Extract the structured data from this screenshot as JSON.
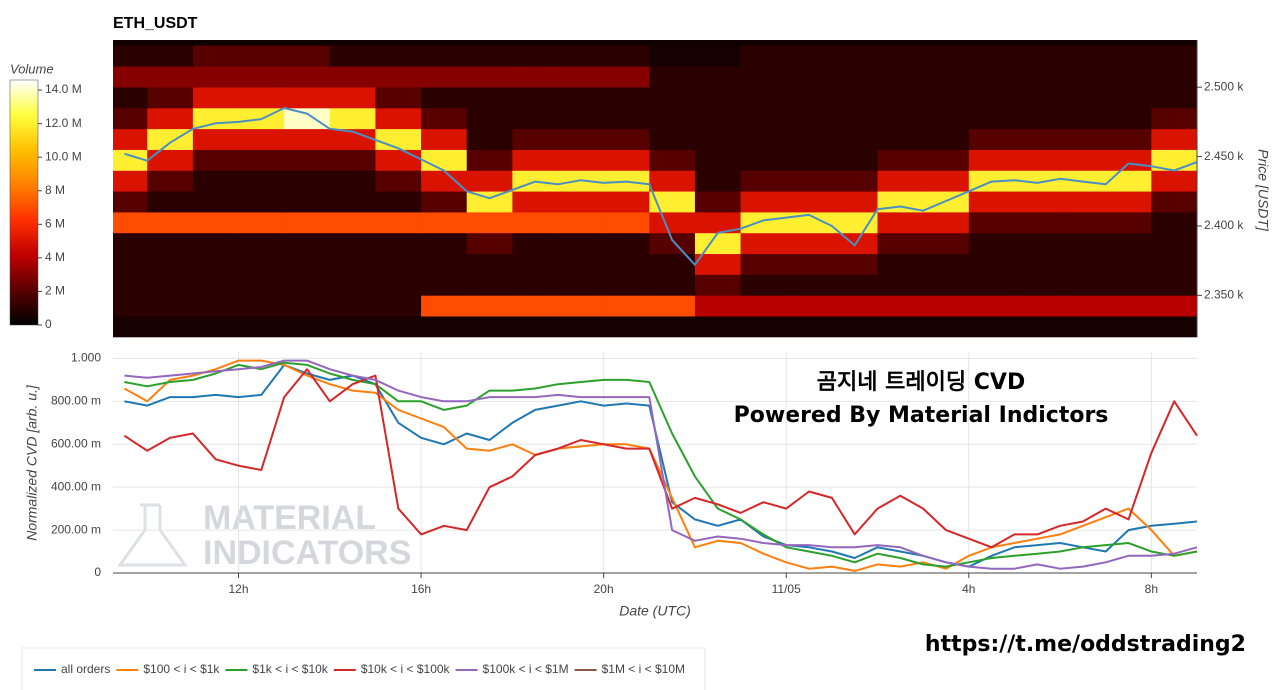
{
  "chart_data": [
    {
      "type": "heatmap",
      "title": "ETH_USDT",
      "x_bins": [
        9.25,
        10,
        11,
        12,
        13,
        14,
        15,
        16,
        17,
        18,
        19,
        20,
        21,
        22,
        23,
        24,
        25,
        26,
        27,
        28,
        29,
        30,
        31,
        32,
        33
      ],
      "y_bins": [
        2320,
        2335,
        2350,
        2365,
        2380,
        2395,
        2410,
        2425,
        2440,
        2455,
        2470,
        2485,
        2500,
        2515,
        2530
      ],
      "z": [
        [
          0.5,
          0.5,
          0.5,
          0.5,
          0.5,
          0.5,
          0.5,
          0.5,
          0.5,
          0.5,
          0.5,
          0.5,
          0.5,
          0.5,
          0.5,
          0.5,
          0.5,
          0.5,
          0.5,
          0.5,
          0.5,
          0.5,
          0.5,
          0.5
        ],
        [
          1,
          1,
          1,
          1,
          1,
          1,
          1,
          7,
          7,
          7,
          7,
          7,
          7,
          4,
          4,
          4,
          4,
          4,
          4,
          4,
          4,
          4,
          4,
          4
        ],
        [
          1,
          1,
          1,
          1,
          1,
          1,
          1,
          1,
          1,
          1,
          1,
          1,
          1,
          2,
          1,
          1,
          1,
          1,
          1,
          1,
          1,
          1,
          1,
          1
        ],
        [
          1,
          1,
          1,
          1,
          1,
          1,
          1,
          1,
          1,
          1,
          1,
          1,
          1,
          5,
          2,
          2,
          2,
          1,
          1,
          1,
          1,
          1,
          1,
          1
        ],
        [
          1,
          1,
          1,
          1,
          1,
          1,
          1,
          1,
          2,
          1,
          1,
          1,
          2,
          12,
          5,
          5,
          5,
          2,
          2,
          1,
          1,
          1,
          1,
          1
        ],
        [
          7,
          7,
          7,
          7,
          7,
          7,
          7,
          7,
          7,
          7,
          7,
          7,
          5,
          5,
          12,
          12,
          12,
          5,
          5,
          2,
          2,
          2,
          2,
          1
        ],
        [
          2,
          1,
          1,
          1,
          1,
          1,
          1,
          2,
          12,
          5,
          5,
          5,
          12,
          2,
          5,
          5,
          5,
          12,
          12,
          5,
          5,
          5,
          5,
          2
        ],
        [
          5,
          2,
          1,
          1,
          1,
          1,
          2,
          5,
          5,
          12,
          12,
          12,
          5,
          1,
          2,
          2,
          2,
          5,
          5,
          12,
          12,
          12,
          12,
          5
        ],
        [
          12,
          5,
          2,
          2,
          2,
          2,
          5,
          12,
          2,
          5,
          5,
          5,
          2,
          1,
          1,
          1,
          1,
          2,
          2,
          5,
          5,
          5,
          5,
          12
        ],
        [
          5,
          12,
          5,
          5,
          5,
          5,
          12,
          5,
          1,
          2,
          2,
          2,
          1,
          1,
          1,
          1,
          1,
          1,
          1,
          2,
          2,
          2,
          2,
          5
        ],
        [
          2,
          5,
          12,
          12,
          14,
          12,
          5,
          2,
          1,
          1,
          1,
          1,
          1,
          1,
          1,
          1,
          1,
          1,
          1,
          1,
          1,
          1,
          1,
          2
        ],
        [
          1,
          2,
          5,
          5,
          5,
          5,
          2,
          1,
          1,
          1,
          1,
          1,
          1,
          1,
          1,
          1,
          1,
          1,
          1,
          1,
          1,
          1,
          1,
          1
        ],
        [
          3,
          3,
          3,
          3,
          3,
          3,
          3,
          3,
          3,
          3,
          3,
          3,
          1,
          1,
          1,
          1,
          1,
          1,
          1,
          1,
          1,
          1,
          1,
          1
        ],
        [
          1,
          1,
          2,
          2,
          2,
          1,
          1,
          1,
          1,
          1,
          1,
          1,
          0.5,
          0.5,
          1,
          1,
          1,
          1,
          1,
          1,
          1,
          1,
          1,
          1
        ]
      ],
      "colorscale": [
        "#000000",
        "#5a0000",
        "#c00000",
        "#ff3000",
        "#ff8000",
        "#ffc000",
        "#ffff40",
        "#ffffff"
      ],
      "colorbar": {
        "title": "Volume",
        "zlim": [
          0,
          14.6
        ],
        "ticks": [
          0,
          {
            "value": 2,
            "label": "2 M"
          },
          {
            "value": 4,
            "label": "4 M"
          },
          {
            "value": 6,
            "label": "6 M"
          },
          {
            "value": 8,
            "label": "8 M"
          },
          {
            "value": 10,
            "label": "10.0 M"
          },
          {
            "value": 12,
            "label": "12.0 M"
          },
          {
            "value": 14,
            "label": "14.0 M"
          }
        ]
      },
      "x": [
        9.5,
        10,
        10.5,
        11,
        11.5,
        12,
        12.5,
        13,
        13.5,
        14,
        14.5,
        15,
        15.5,
        16,
        16.5,
        17,
        17.5,
        18,
        18.5,
        19,
        19.5,
        20,
        20.5,
        21,
        21.5,
        22,
        22.5,
        23,
        23.5,
        24,
        24.5,
        25,
        25.5,
        26,
        26.5,
        27,
        27.5,
        28,
        28.5,
        29,
        29.5,
        30,
        30.5,
        31,
        31.5,
        32,
        32.5,
        33
      ],
      "series": [
        {
          "color": "#4a8fc4",
          "values": [
            2452,
            2447,
            2460,
            2470,
            2474,
            2475,
            2477,
            2485,
            2481,
            2470,
            2468,
            2462,
            2456,
            2448,
            2440,
            2425,
            2420,
            2426,
            2432,
            2430,
            2433,
            2431,
            2432,
            2430,
            2390,
            2372,
            2395,
            2398,
            2404,
            2406,
            2408,
            2400,
            2386,
            2412,
            2414,
            2411,
            2418,
            2425,
            2432,
            2433,
            2431,
            2434,
            2432,
            2430,
            2445,
            2443,
            2440,
            2446
          ]
        }
      ],
      "xlim": [
        9.25,
        33
      ],
      "ylim": [
        2320,
        2534
      ],
      "y_label": "Price [USDT]",
      "yticks": [
        {
          "value": 2350,
          "label": "2.350 k"
        },
        {
          "value": 2400,
          "label": "2.400 k"
        },
        {
          "value": 2450,
          "label": "2.450 k"
        },
        {
          "value": 2500,
          "label": "2.500 k"
        }
      ]
    },
    {
      "type": "line",
      "x": [
        9.5,
        10,
        10.5,
        11,
        11.5,
        12,
        12.5,
        13,
        13.5,
        14,
        14.5,
        15,
        15.5,
        16,
        16.5,
        17,
        17.5,
        18,
        18.5,
        19,
        19.5,
        20,
        20.5,
        21,
        21.5,
        22,
        22.5,
        23,
        23.5,
        24,
        24.5,
        25,
        25.5,
        26,
        26.5,
        27,
        27.5,
        28,
        28.5,
        29,
        29.5,
        30,
        30.5,
        31,
        31.5,
        32,
        32.5,
        33
      ],
      "series": [
        {
          "name": "all orders",
          "color": "#1f77b4",
          "values": [
            0.8,
            0.78,
            0.82,
            0.82,
            0.83,
            0.82,
            0.83,
            0.97,
            0.93,
            0.9,
            0.92,
            0.88,
            0.7,
            0.63,
            0.6,
            0.65,
            0.62,
            0.7,
            0.76,
            0.78,
            0.8,
            0.78,
            0.79,
            0.78,
            0.33,
            0.25,
            0.22,
            0.25,
            0.17,
            0.13,
            0.12,
            0.1,
            0.07,
            0.12,
            0.1,
            0.08,
            0.05,
            0.03,
            0.08,
            0.12,
            0.13,
            0.14,
            0.12,
            0.1,
            0.2,
            0.22,
            0.23,
            0.24
          ]
        },
        {
          "name": "$100 < i < $1k",
          "color": "#ff7f0e",
          "values": [
            0.86,
            0.8,
            0.9,
            0.92,
            0.95,
            0.99,
            0.99,
            0.97,
            0.92,
            0.88,
            0.85,
            0.84,
            0.76,
            0.72,
            0.68,
            0.58,
            0.57,
            0.6,
            0.55,
            0.58,
            0.59,
            0.6,
            0.6,
            0.58,
            0.35,
            0.12,
            0.15,
            0.14,
            0.09,
            0.05,
            0.02,
            0.03,
            0.01,
            0.04,
            0.03,
            0.05,
            0.02,
            0.08,
            0.12,
            0.14,
            0.16,
            0.18,
            0.22,
            0.26,
            0.3,
            0.2,
            0.08,
            0.1
          ]
        },
        {
          "name": "$1k < i < $10k",
          "color": "#2ca02c",
          "values": [
            0.89,
            0.87,
            0.89,
            0.9,
            0.93,
            0.97,
            0.95,
            0.98,
            0.97,
            0.93,
            0.9,
            0.88,
            0.8,
            0.8,
            0.76,
            0.78,
            0.85,
            0.85,
            0.86,
            0.88,
            0.89,
            0.9,
            0.9,
            0.89,
            0.65,
            0.45,
            0.3,
            0.25,
            0.18,
            0.12,
            0.1,
            0.08,
            0.05,
            0.09,
            0.07,
            0.04,
            0.03,
            0.05,
            0.07,
            0.08,
            0.09,
            0.1,
            0.12,
            0.13,
            0.14,
            0.1,
            0.08,
            0.1
          ]
        },
        {
          "name": "$10k < i < $100k",
          "color": "#d62728",
          "values": [
            0.64,
            0.57,
            0.63,
            0.65,
            0.53,
            0.5,
            0.48,
            0.82,
            0.95,
            0.8,
            0.88,
            0.92,
            0.3,
            0.18,
            0.22,
            0.2,
            0.4,
            0.45,
            0.55,
            0.58,
            0.62,
            0.6,
            0.58,
            0.58,
            0.3,
            0.35,
            0.32,
            0.28,
            0.33,
            0.3,
            0.38,
            0.35,
            0.18,
            0.3,
            0.36,
            0.3,
            0.2,
            0.16,
            0.12,
            0.18,
            0.18,
            0.22,
            0.24,
            0.3,
            0.25,
            0.56,
            0.8,
            0.64
          ]
        },
        {
          "name": "$100k < i < $1M",
          "color": "#9467bd",
          "values": [
            0.92,
            0.91,
            0.92,
            0.93,
            0.94,
            0.95,
            0.96,
            0.99,
            0.99,
            0.95,
            0.92,
            0.9,
            0.85,
            0.82,
            0.8,
            0.8,
            0.82,
            0.82,
            0.82,
            0.83,
            0.82,
            0.82,
            0.82,
            0.82,
            0.2,
            0.15,
            0.17,
            0.16,
            0.14,
            0.13,
            0.13,
            0.12,
            0.12,
            0.13,
            0.12,
            0.08,
            0.05,
            0.03,
            0.02,
            0.02,
            0.04,
            0.02,
            0.03,
            0.05,
            0.08,
            0.08,
            0.09,
            0.12
          ]
        },
        {
          "name": "$1M < i < $10M",
          "color": "#8c564b",
          "values": [
            null,
            null,
            null,
            null,
            null,
            null,
            null,
            null,
            null,
            null,
            null,
            null,
            null,
            null,
            null,
            null,
            null,
            null,
            null,
            null,
            null,
            null,
            null,
            null,
            null,
            null,
            null,
            null,
            null,
            null,
            null,
            null,
            null,
            null,
            null,
            null,
            null,
            null,
            null,
            null,
            null,
            null,
            null,
            null,
            null,
            null,
            null,
            null
          ]
        }
      ],
      "xlim": [
        9.25,
        33
      ],
      "xticks": [
        {
          "value": 12,
          "label": "12h"
        },
        {
          "value": 16,
          "label": "16h"
        },
        {
          "value": 20,
          "label": "20h"
        },
        {
          "value": 24,
          "label": "11/05"
        },
        {
          "value": 28,
          "label": "4h"
        },
        {
          "value": 32,
          "label": "8h"
        }
      ],
      "ylim": [
        0,
        1.03
      ],
      "yticks": [
        0,
        {
          "value": 0.2,
          "label": "200.00 m"
        },
        {
          "value": 0.4,
          "label": "400.00 m"
        },
        {
          "value": 0.6,
          "label": "600.00 m"
        },
        {
          "value": 0.8,
          "label": "800.00 m"
        },
        {
          "value": 1,
          "label": "1.000"
        }
      ],
      "x_label": "Date (UTC)",
      "y_label": "Normalized CVD [arb. u.]",
      "grid": true,
      "legend": "bottom",
      "annotations": [
        "곰지네 트레이딩 CVD",
        "Powered By Material Indictors"
      ],
      "watermark": [
        "MATERIAL",
        "INDICATORS"
      ]
    }
  ],
  "footer_link": "https://t.me/oddstrading2"
}
